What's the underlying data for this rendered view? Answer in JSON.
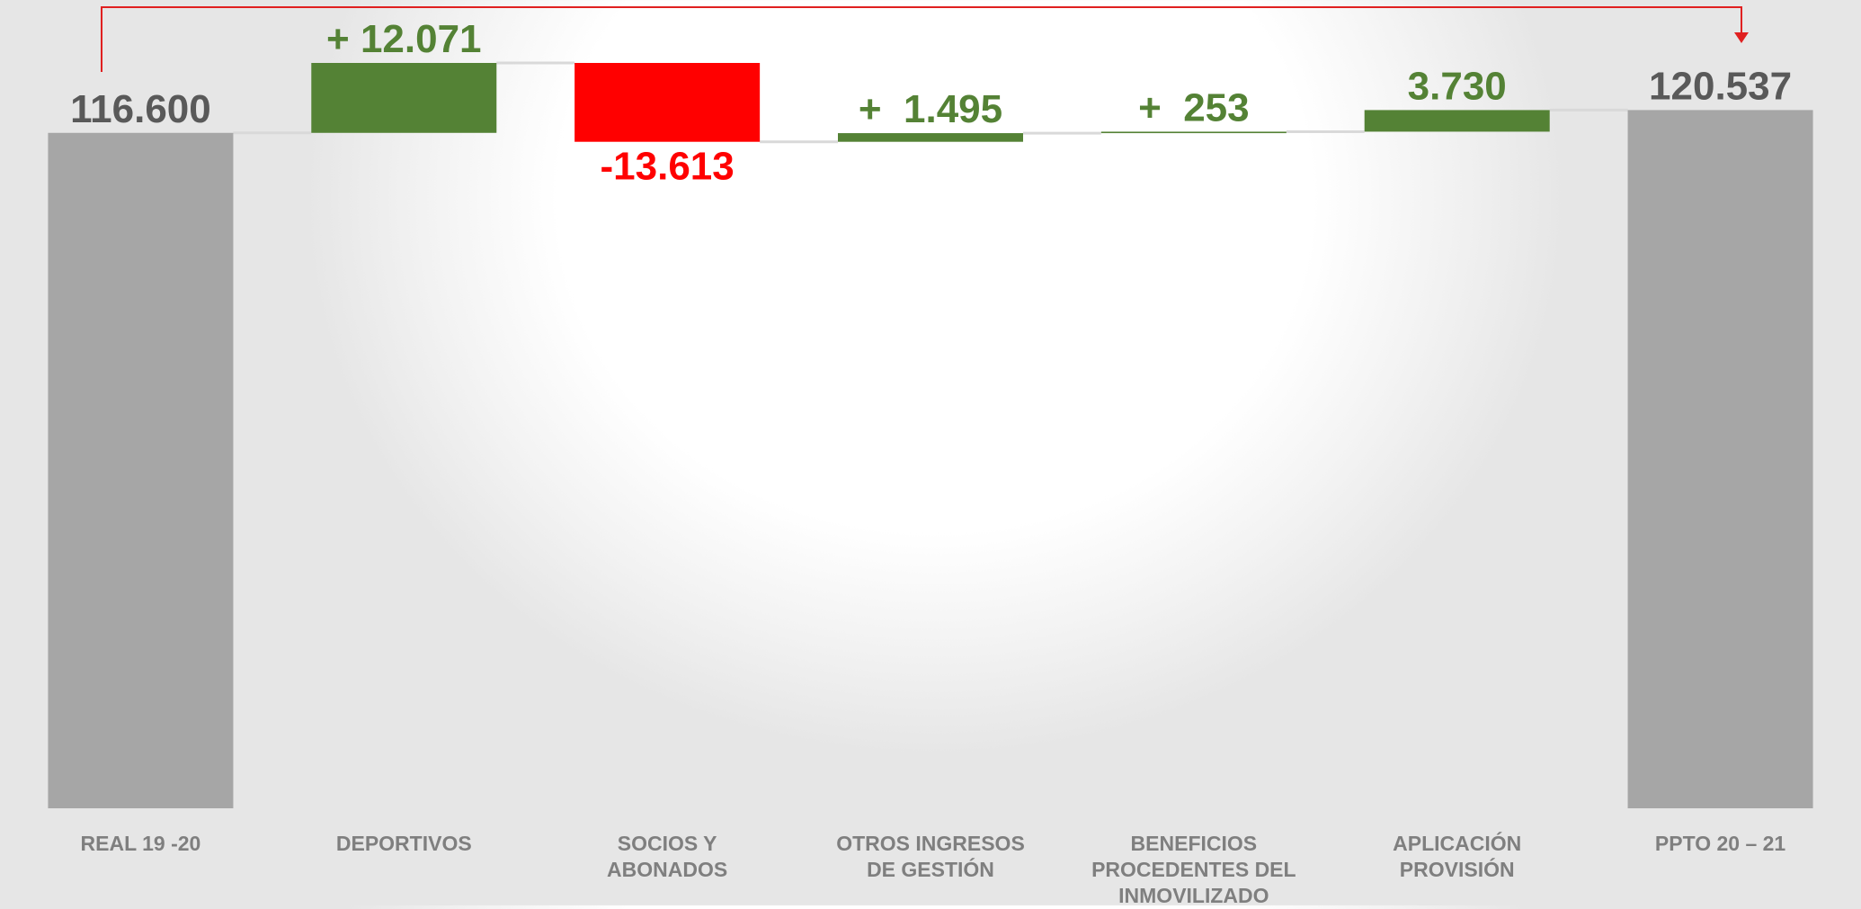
{
  "chart_data": {
    "type": "waterfall",
    "categories": [
      "REAL 19 -20",
      "DEPORTIVOS",
      "SOCIOS Y ABONADOS",
      "OTROS INGRESOS DE GESTIÓN",
      "BENEFICIOS PROCEDENTES DEL INMOVILIZADO",
      "APLICACIÓN PROVISIÓN",
      "PPTO 20 – 21"
    ],
    "values": [
      116600,
      12071,
      -13613,
      1495,
      253,
      3730,
      120537
    ],
    "value_labels": [
      "116.600",
      "+ 12.071",
      "-13.613",
      "+  1.495",
      "+  253",
      "3.730",
      "120.537"
    ],
    "total_color": "#a6a6a6",
    "increase_color": "#548235",
    "decrease_color": "#ff0000",
    "total_label_color": "#595959"
  }
}
